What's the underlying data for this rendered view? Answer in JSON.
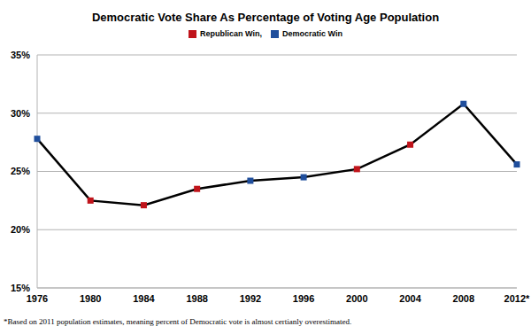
{
  "chart_data": {
    "type": "line",
    "title": "Democratic Vote Share As Percentage of Voting Age Population",
    "categories": [
      "1976",
      "1980",
      "1984",
      "1988",
      "1992",
      "1996",
      "2000",
      "2004",
      "2008",
      "2012*"
    ],
    "values": [
      27.8,
      22.5,
      22.1,
      23.5,
      24.2,
      24.5,
      25.2,
      27.3,
      30.8,
      25.6
    ],
    "color": "#000000",
    "colors": [
      "#1f4e9c",
      "#c0141b",
      "#c0141b",
      "#c0141b",
      "#1f4e9c",
      "#1f4e9c",
      "#c0141b",
      "#c0141b",
      "#1f4e9c",
      "#1f4e9c"
    ],
    "marker": "square",
    "legend_items": [
      {
        "name": "Republican Win,",
        "color": "#c0141b"
      },
      {
        "name": "Democratic Win",
        "color": "#1f4e9c"
      }
    ],
    "legend": "top",
    "ylim": [
      15,
      35
    ],
    "yticks": [
      {
        "value": 15,
        "label": "15%"
      },
      {
        "value": 20,
        "label": "20%"
      },
      {
        "value": 25,
        "label": "25%"
      },
      {
        "value": 30,
        "label": "30%"
      },
      {
        "value": 35,
        "label": "35%"
      }
    ],
    "grid": true,
    "footnote": "*Based on 2011 population estimates, meaning percent of Democratic vote is almost certianly overestimated."
  }
}
